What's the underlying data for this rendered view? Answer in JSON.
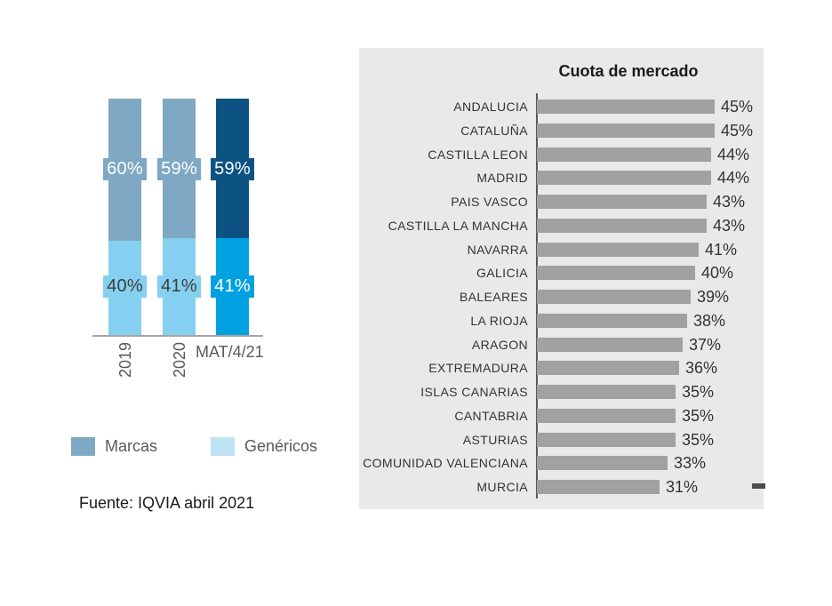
{
  "chart_data": [
    {
      "type": "bar",
      "subtype": "100-percent-stacked-column",
      "categories": [
        "2019",
        "2020",
        "MAT/4/21"
      ],
      "series": [
        {
          "name": "Marcas",
          "values": [
            60,
            59,
            59
          ],
          "labels": [
            "60%",
            "59%",
            "59%"
          ]
        },
        {
          "name": "Genéricos",
          "values": [
            40,
            41,
            41
          ],
          "labels": [
            "40%",
            "41%",
            "41%"
          ]
        }
      ],
      "highlighted_category_index": 2,
      "ylim": [
        0,
        100
      ],
      "grid": false,
      "legend_position": "bottom",
      "legend": [
        {
          "label": "Marcas",
          "swatch": "#7FA8C4"
        },
        {
          "label": "Genéricos",
          "swatch": "#BEE3F5"
        }
      ],
      "colors": {
        "marcas_muted": "#7FA8C4",
        "marcas_highlight": "#0C5383",
        "genericos_muted": "#85D0F0",
        "genericos_highlight": "#00A1E0",
        "axis_line": "#A6A6A6",
        "tick_text": "#595959",
        "label_text_dark": "#3D3D3D",
        "label_text_light": "#FFFFFF"
      },
      "source_note": "Fuente: IQVIA abril 2021"
    },
    {
      "type": "bar",
      "orientation": "horizontal",
      "title": "Cuota de mercado",
      "categories": [
        "ANDALUCIA",
        "CATALUÑA",
        "CASTILLA LEON",
        "MADRID",
        "PAIS VASCO",
        "CASTILLA LA MANCHA",
        "NAVARRA",
        "GALICIA",
        "BALEARES",
        "LA RIOJA",
        "ARAGON",
        "EXTREMADURA",
        "ISLAS CANARIAS",
        "CANTABRIA",
        "ASTURIAS",
        "COMUNIDAD VALENCIANA",
        "MURCIA"
      ],
      "values": [
        45,
        45,
        44,
        44,
        43,
        43,
        41,
        40,
        39,
        38,
        37,
        36,
        35,
        35,
        35,
        33,
        31
      ],
      "value_labels": [
        "45%",
        "45%",
        "44%",
        "44%",
        "43%",
        "43%",
        "41%",
        "40%",
        "39%",
        "38%",
        "37%",
        "36%",
        "35%",
        "35%",
        "35%",
        "33%",
        "31%"
      ],
      "xlim": [
        0,
        46
      ],
      "grid": false,
      "legend_position": "none",
      "colors": {
        "bar": "#A1A1A1",
        "panel_background": "#E9E9E9",
        "axis_line": "#595959",
        "category_text": "#333333",
        "value_text": "#333333"
      }
    }
  ]
}
